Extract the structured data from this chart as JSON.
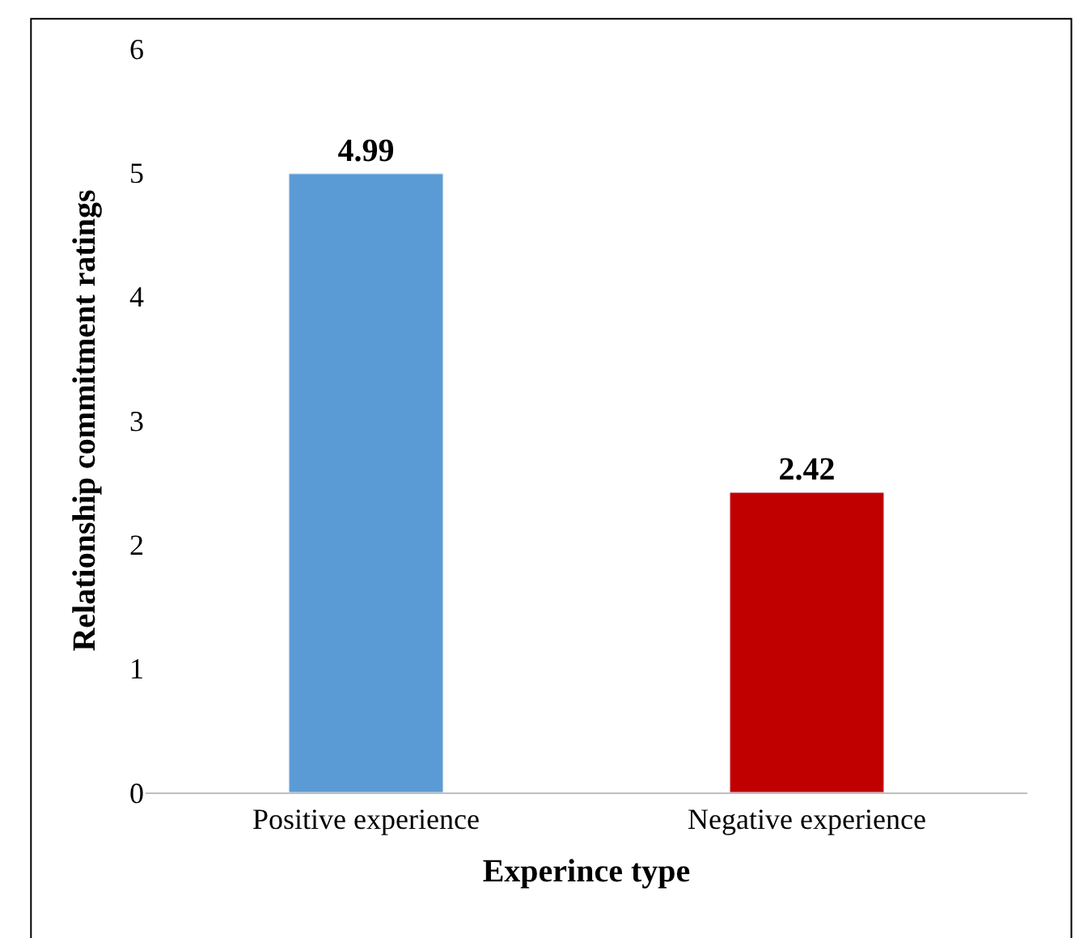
{
  "chart_data": {
    "type": "bar",
    "xlabel": "Experince type",
    "ylabel": "Relationship commitment ratings",
    "categories": [
      "Positive experience",
      "Negative experience"
    ],
    "values": [
      4.99,
      2.42
    ],
    "colors": [
      "#5b9bd5",
      "#c00000"
    ],
    "ylim": [
      0,
      6
    ],
    "yticks": [
      0,
      1,
      2,
      3,
      4,
      5,
      6
    ],
    "grid": false,
    "data_labels": true
  }
}
